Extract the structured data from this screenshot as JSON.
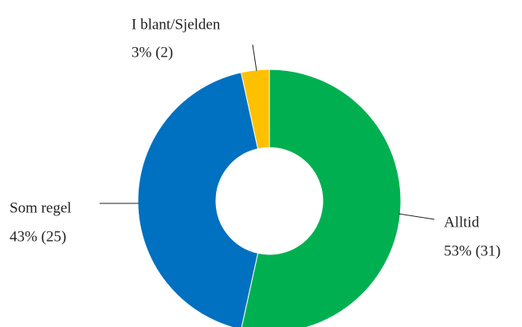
{
  "chart_data": {
    "type": "donut",
    "categories": [
      "Alltid",
      "Som regel",
      "I blant/Sjelden"
    ],
    "values": [
      31,
      25,
      2
    ],
    "value_labels": [
      "53% (31)",
      "43% (25)",
      "3% (2)"
    ],
    "colors": [
      "#00b050",
      "#0070c0",
      "#ffc000"
    ]
  }
}
